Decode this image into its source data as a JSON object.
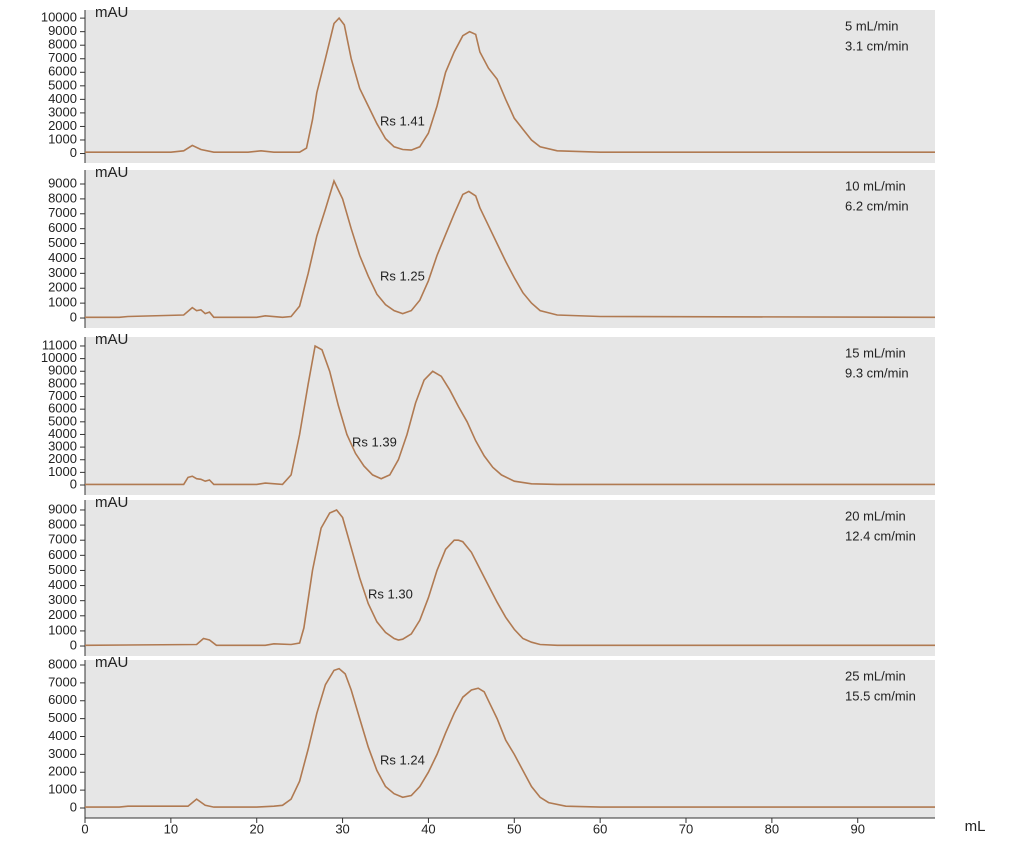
{
  "chart_data": [
    {
      "type": "line",
      "ylabel": "mAU",
      "label_lines": [
        "5 mL/min",
        "3.1 cm/min"
      ],
      "annotation": "Rs 1.41",
      "color": "#b07a52",
      "xlim": [
        0,
        99
      ],
      "ylim": [
        -700,
        10600
      ],
      "yticks": [
        0,
        1000,
        2000,
        3000,
        4000,
        5000,
        6000,
        7000,
        8000,
        9000,
        10000
      ],
      "x": [
        0,
        10,
        11.5,
        12.5,
        13.5,
        15,
        19,
        20.5,
        22,
        25,
        25.8,
        26.5,
        27,
        28,
        29,
        29.6,
        30.2,
        31,
        32,
        33,
        34,
        35,
        36,
        37,
        38,
        39,
        40,
        41,
        42,
        43,
        44,
        44.8,
        45.5,
        46,
        47,
        48,
        49,
        50,
        51,
        52,
        53,
        55,
        60,
        99
      ],
      "values": [
        100,
        100,
        200,
        600,
        300,
        100,
        100,
        200,
        100,
        100,
        400,
        2500,
        4500,
        7000,
        9600,
        10000,
        9500,
        7000,
        4800,
        3500,
        2200,
        1100,
        500,
        300,
        250,
        500,
        1500,
        3500,
        6000,
        7500,
        8700,
        9000,
        8800,
        7500,
        6300,
        5500,
        4000,
        2600,
        1800,
        1000,
        500,
        200,
        100,
        100
      ]
    },
    {
      "type": "line",
      "ylabel": "mAU",
      "label_lines": [
        "10 mL/min",
        "6.2 cm/min"
      ],
      "annotation": "Rs 1.25",
      "color": "#b07a52",
      "xlim": [
        0,
        99
      ],
      "ylim": [
        -670,
        9940
      ],
      "yticks": [
        0,
        1000,
        2000,
        3000,
        4000,
        5000,
        6000,
        7000,
        8000,
        9000
      ],
      "x": [
        0,
        4,
        5,
        11.5,
        12.5,
        13,
        13.5,
        14,
        14.5,
        15,
        20,
        21,
        23,
        24,
        25,
        26,
        27,
        28,
        29,
        30,
        31,
        32,
        33,
        34,
        35,
        36,
        37,
        38,
        39,
        40,
        41,
        42,
        43,
        44,
        44.7,
        45.5,
        46,
        47,
        48,
        49,
        50,
        51,
        52,
        53,
        55,
        60,
        99
      ],
      "values": [
        50,
        50,
        100,
        200,
        700,
        500,
        550,
        300,
        400,
        50,
        50,
        150,
        50,
        100,
        800,
        3000,
        5500,
        7300,
        9200,
        8000,
        6000,
        4200,
        2800,
        1600,
        900,
        500,
        300,
        500,
        1200,
        2500,
        4200,
        5600,
        7000,
        8300,
        8500,
        8200,
        7400,
        6200,
        5000,
        3800,
        2700,
        1700,
        1000,
        500,
        200,
        100,
        50
      ]
    },
    {
      "type": "line",
      "ylabel": "mAU",
      "label_lines": [
        "15 mL/min",
        "9.3 cm/min"
      ],
      "annotation": "Rs 1.39",
      "color": "#b07a52",
      "xlim": [
        0,
        99
      ],
      "ylim": [
        -790,
        11710
      ],
      "yticks": [
        0,
        1000,
        2000,
        3000,
        4000,
        5000,
        6000,
        7000,
        8000,
        9000,
        10000,
        11000
      ],
      "x": [
        0,
        11.5,
        12,
        12.5,
        13,
        13.5,
        14,
        14.5,
        15,
        20,
        21,
        23,
        24,
        25,
        26,
        26.8,
        27.6,
        28.5,
        29.5,
        30.5,
        31.5,
        32.5,
        33.5,
        34.5,
        35.5,
        36.5,
        37.5,
        38.5,
        39.5,
        40.5,
        41.5,
        42.5,
        43.5,
        44.5,
        45.5,
        46.5,
        47.5,
        48.5,
        50,
        52,
        55,
        60,
        99
      ],
      "values": [
        50,
        50,
        600,
        700,
        500,
        450,
        300,
        400,
        50,
        50,
        150,
        50,
        800,
        4000,
        8000,
        11000,
        10700,
        9000,
        6300,
        4000,
        2500,
        1500,
        800,
        500,
        800,
        2000,
        4000,
        6500,
        8300,
        9000,
        8600,
        7500,
        6200,
        5000,
        3500,
        2300,
        1400,
        800,
        300,
        100,
        50,
        50,
        50
      ]
    },
    {
      "type": "line",
      "ylabel": "mAU",
      "label_lines": [
        "20 mL/min",
        "12.4 cm/min"
      ],
      "annotation": "Rs 1.30",
      "color": "#b07a52",
      "xlim": [
        0,
        99
      ],
      "ylim": [
        -660,
        9660
      ],
      "yticks": [
        0,
        1000,
        2000,
        3000,
        4000,
        5000,
        6000,
        7000,
        8000,
        9000
      ],
      "x": [
        0,
        13,
        13.8,
        14.5,
        15.3,
        16,
        21,
        22,
        24,
        25,
        25.5,
        26.5,
        27.5,
        28.5,
        29.3,
        30,
        31,
        32,
        33,
        34,
        35,
        36,
        36.5,
        37,
        38,
        39,
        40,
        41,
        42,
        43,
        43.5,
        44,
        45,
        46,
        47,
        48,
        49,
        50,
        51,
        52,
        53,
        55,
        60,
        99
      ],
      "values": [
        50,
        100,
        500,
        400,
        50,
        50,
        50,
        150,
        100,
        200,
        1200,
        5000,
        7800,
        8800,
        9000,
        8500,
        6500,
        4500,
        2800,
        1600,
        900,
        500,
        400,
        450,
        800,
        1700,
        3200,
        5000,
        6400,
        7000,
        7000,
        6900,
        6200,
        5100,
        4000,
        2900,
        1900,
        1100,
        500,
        250,
        100,
        50,
        50,
        50
      ]
    },
    {
      "type": "line",
      "ylabel": "mAU",
      "label_lines": [
        "25 mL/min",
        "15.5 cm/min"
      ],
      "annotation": "Rs 1.24",
      "color": "#b07a52",
      "xlim": [
        0,
        99
      ],
      "ylim": [
        -560,
        8280
      ],
      "yticks": [
        0,
        1000,
        2000,
        3000,
        4000,
        5000,
        6000,
        7000,
        8000
      ],
      "xlabel": "mL",
      "xticks": [
        0,
        10,
        20,
        30,
        40,
        50,
        60,
        70,
        80,
        90
      ],
      "x": [
        0,
        4,
        5,
        12,
        13,
        14,
        15,
        20,
        22,
        23,
        24,
        25,
        26,
        27,
        28,
        29,
        29.6,
        30.3,
        31,
        32,
        33,
        34,
        35,
        36,
        37,
        38,
        39,
        40,
        41,
        42,
        43,
        44,
        45,
        45.8,
        46.5,
        47,
        48,
        49,
        50,
        51,
        52,
        53,
        54,
        56,
        60,
        99
      ],
      "values": [
        50,
        50,
        100,
        100,
        500,
        150,
        50,
        50,
        100,
        150,
        500,
        1500,
        3300,
        5300,
        6900,
        7700,
        7800,
        7500,
        6600,
        5000,
        3400,
        2100,
        1200,
        800,
        600,
        700,
        1200,
        2000,
        3000,
        4200,
        5300,
        6200,
        6600,
        6700,
        6500,
        6000,
        5000,
        3800,
        3000,
        2100,
        1200,
        600,
        300,
        100,
        50,
        50
      ]
    }
  ]
}
